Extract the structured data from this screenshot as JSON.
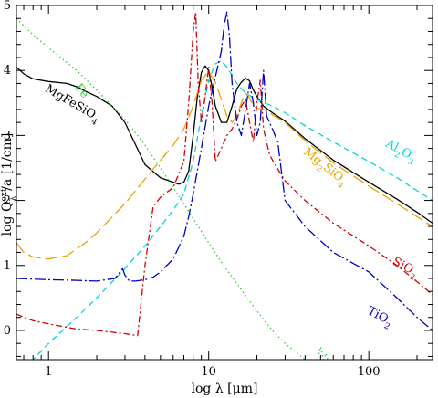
{
  "chart_data": {
    "type": "line",
    "title": "",
    "xlabel": "log λ [μm]",
    "ylabel": "log Qλ^ext/a [1/cm]",
    "xscale": "log",
    "xlim": [
      0.63,
      250
    ],
    "ylim": [
      -0.45,
      5.0
    ],
    "x_tick_labels": [
      "1",
      "10",
      "100"
    ],
    "x_tick_values": [
      1,
      10,
      100
    ],
    "y_tick_labels": [
      "0",
      "1",
      "2",
      "3",
      "4",
      "5"
    ],
    "y_tick_values": [
      0,
      1,
      2,
      3,
      4,
      5
    ],
    "grid": false,
    "series": [
      {
        "name": "MgFeSiO₄",
        "label_sub": "4",
        "color": "#000000",
        "dash": "solid",
        "x": [
          0.63,
          0.7,
          0.8,
          1.0,
          1.3,
          1.5,
          1.7,
          2.0,
          2.5,
          3.0,
          4.0,
          5.0,
          6.0,
          6.5,
          7.0,
          7.5,
          8.0,
          8.5,
          9.0,
          9.5,
          10.0,
          10.5,
          11.0,
          12.0,
          13.0,
          14.0,
          15.0,
          16.0,
          17.0,
          18.0,
          19.0,
          20.0,
          22.0,
          25.0,
          30.0,
          40.0,
          60.0,
          100.0,
          150.0,
          200.0,
          250.0
        ],
        "y": [
          4.05,
          3.95,
          3.87,
          3.83,
          3.8,
          3.75,
          3.68,
          3.6,
          3.45,
          3.2,
          2.55,
          2.35,
          2.28,
          2.25,
          2.28,
          2.45,
          3.0,
          3.6,
          3.97,
          4.07,
          4.0,
          3.75,
          3.45,
          3.2,
          3.2,
          3.45,
          3.72,
          3.82,
          3.88,
          3.84,
          3.7,
          3.6,
          3.45,
          3.35,
          3.22,
          2.95,
          2.62,
          2.28,
          2.02,
          1.82,
          1.65
        ]
      },
      {
        "name": "Mg₂SiO₄",
        "color": "#e8a400",
        "dash": "longdash",
        "x": [
          0.63,
          0.7,
          0.8,
          1.0,
          1.3,
          1.7,
          2.0,
          3.0,
          4.0,
          5.0,
          6.0,
          7.0,
          8.0,
          9.0,
          10.0,
          11.0,
          12.0,
          13.0,
          14.0,
          15.0,
          16.0,
          17.0,
          18.0,
          19.0,
          20.0,
          22.0,
          25.0,
          30.0,
          40.0,
          60.0,
          100.0,
          150.0,
          200.0,
          250.0
        ],
        "y": [
          1.35,
          1.2,
          1.13,
          1.1,
          1.15,
          1.35,
          1.5,
          1.95,
          2.33,
          2.62,
          2.85,
          3.1,
          3.45,
          3.85,
          3.98,
          3.82,
          3.55,
          3.3,
          3.2,
          3.3,
          3.5,
          3.65,
          3.58,
          3.45,
          3.42,
          3.4,
          3.32,
          3.2,
          2.92,
          2.58,
          2.22,
          1.95,
          1.75,
          1.6
        ]
      },
      {
        "name": "Al₂O₃",
        "color": "#00d6dd",
        "dash": "dashed",
        "x": [
          0.63,
          0.7,
          1.0,
          1.5,
          2.0,
          3.0,
          4.0,
          5.0,
          6.0,
          7.0,
          8.0,
          9.0,
          10.0,
          11.0,
          12.0,
          13.0,
          15.0,
          17.0,
          20.0,
          25.0,
          30.0,
          40.0,
          60.0,
          100.0,
          150.0,
          200.0,
          250.0
        ],
        "y": [
          -0.7,
          -0.6,
          -0.2,
          0.2,
          0.5,
          0.95,
          1.3,
          1.6,
          1.85,
          2.1,
          2.6,
          3.3,
          3.85,
          4.1,
          4.15,
          4.05,
          3.8,
          3.65,
          3.55,
          3.45,
          3.35,
          3.15,
          2.9,
          2.6,
          2.35,
          2.15,
          2.0
        ]
      },
      {
        "name": "SiO₂",
        "color": "#d40000",
        "dash": "dashdot",
        "x": [
          0.63,
          0.8,
          1.0,
          1.5,
          2.0,
          3.0,
          3.6,
          4.0,
          4.5,
          5.0,
          6.0,
          7.0,
          7.5,
          8.0,
          8.3,
          8.6,
          9.0,
          9.5,
          10.0,
          10.5,
          11.0,
          12.0,
          13.0,
          14.0,
          15.0,
          16.0,
          17.0,
          18.0,
          19.0,
          20.0,
          21.0,
          22.0,
          24.0,
          26.0,
          30.0,
          40.0,
          60.0,
          100.0,
          150.0,
          200.0,
          250.0
        ],
        "y": [
          0.25,
          0.15,
          0.1,
          0.02,
          0.0,
          -0.05,
          -0.08,
          1.0,
          1.9,
          2.05,
          2.2,
          2.6,
          3.5,
          4.6,
          4.9,
          3.8,
          3.2,
          3.6,
          4.05,
          3.5,
          2.6,
          2.8,
          3.0,
          3.1,
          3.25,
          3.45,
          3.55,
          3.2,
          2.9,
          3.5,
          3.85,
          3.1,
          2.7,
          2.55,
          2.3,
          2.0,
          1.65,
          1.3,
          1.0,
          0.75,
          0.55
        ]
      },
      {
        "name": "TiO₂",
        "color": "#0000c8",
        "dash": "dashdotlong",
        "x": [
          0.63,
          0.8,
          1.0,
          1.5,
          2.0,
          2.6,
          2.9,
          3.0,
          3.2,
          3.5,
          4.0,
          4.5,
          5.0,
          6.0,
          7.0,
          7.5,
          8.0,
          9.0,
          10.0,
          11.0,
          12.0,
          12.5,
          13.0,
          13.5,
          14.0,
          15.0,
          16.0,
          17.0,
          18.0,
          19.0,
          20.0,
          21.0,
          22.0,
          23.0,
          25.0,
          27.0,
          30.0,
          40.0,
          60.0,
          100.0,
          150.0,
          200.0,
          250.0
        ],
        "y": [
          0.8,
          0.79,
          0.78,
          0.77,
          0.76,
          0.8,
          0.95,
          0.85,
          0.76,
          0.76,
          0.78,
          0.82,
          0.9,
          1.1,
          1.45,
          1.75,
          2.1,
          2.8,
          3.45,
          3.9,
          4.3,
          4.7,
          4.9,
          4.5,
          3.8,
          3.2,
          3.0,
          3.4,
          3.8,
          3.5,
          3.0,
          3.2,
          4.0,
          3.3,
          3.1,
          2.9,
          2.0,
          1.6,
          1.2,
          0.9,
          0.5,
          0.2,
          0.0
        ]
      },
      {
        "name": "Fe",
        "color": "#32cd32",
        "dash": "dotted",
        "x": [
          0.63,
          0.8,
          1.0,
          1.5,
          2.0,
          3.0,
          4.0,
          5.0,
          6.0,
          7.0,
          8.0,
          10.0,
          12.0,
          15.0,
          20.0,
          25.0,
          30.0,
          40.0,
          48.0,
          50.0,
          52.0,
          54.0,
          56.0,
          60.0,
          70.0
        ],
        "y": [
          4.8,
          4.55,
          4.35,
          4.0,
          3.7,
          3.25,
          2.85,
          2.5,
          2.2,
          1.95,
          1.72,
          1.35,
          1.05,
          0.72,
          0.3,
          0.0,
          -0.2,
          -0.45,
          -0.45,
          -0.25,
          -0.45,
          -0.35,
          -0.5,
          -0.55,
          -0.6
        ]
      }
    ],
    "annotations": [
      {
        "text": "Fe",
        "series": "Fe",
        "lx": 1.55,
        "ly": 3.65,
        "rotate": 50
      },
      {
        "text": "MgFeSiO",
        "sub": "4",
        "series": "MgFeSiO₄",
        "lx": 1.38,
        "ly": 3.45,
        "rotate": 30
      },
      {
        "text": "Mg",
        "sub": "2",
        "tail": "SiO",
        "sub2": "4",
        "series": "Mg₂SiO₄",
        "lx": 52.0,
        "ly": 2.48,
        "rotate": 38
      },
      {
        "text": "Al",
        "sub": "2",
        "tail": "O",
        "sub2": "3",
        "series": "Al₂O₃",
        "lx": 155.0,
        "ly": 2.72,
        "rotate": 28
      },
      {
        "text": "SiO",
        "sub": "2",
        "series": "SiO₂",
        "lx": 165.0,
        "ly": 0.93,
        "rotate": 28
      },
      {
        "text": "TiO",
        "sub": "2",
        "series": "TiO₂",
        "lx": 115.0,
        "ly": 0.17,
        "rotate": 28
      }
    ]
  }
}
